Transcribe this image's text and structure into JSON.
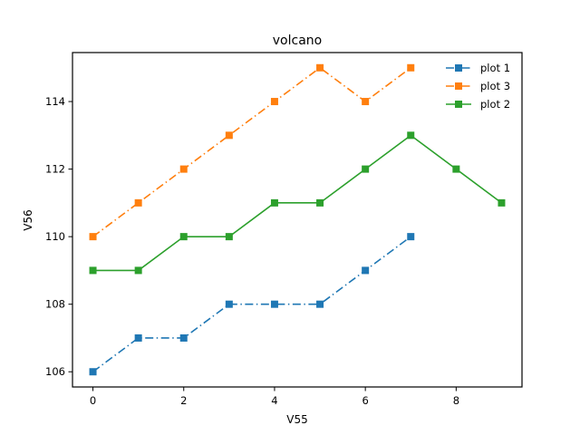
{
  "chart_data": {
    "type": "line",
    "title": "volcano",
    "xlabel": "V55",
    "ylabel": "V56",
    "xlim": [
      -0.45,
      9.45
    ],
    "ylim": [
      105.55,
      115.45
    ],
    "xticks": [
      0,
      2,
      4,
      6,
      8
    ],
    "yticks": [
      106,
      108,
      110,
      112,
      114
    ],
    "grid": false,
    "legend_position": "top-right",
    "series": [
      {
        "name": "plot 1",
        "color": "#1f77b4",
        "linestyle": "dashdot",
        "marker": "square",
        "x": [
          0,
          1,
          2,
          3,
          4,
          5,
          6,
          7
        ],
        "y": [
          106,
          107,
          107,
          108,
          108,
          108,
          109,
          110
        ]
      },
      {
        "name": "plot 3",
        "color": "#ff7f0e",
        "linestyle": "dashdot",
        "marker": "square",
        "x": [
          0,
          1,
          2,
          3,
          4,
          5,
          6,
          7
        ],
        "y": [
          110,
          111,
          112,
          113,
          114,
          115,
          114,
          115
        ]
      },
      {
        "name": "plot 2",
        "color": "#2ca02c",
        "linestyle": "solid",
        "marker": "square",
        "x": [
          0,
          1,
          2,
          3,
          4,
          5,
          6,
          7,
          8,
          9
        ],
        "y": [
          109,
          109,
          110,
          110,
          111,
          111,
          112,
          113,
          112,
          111
        ]
      }
    ]
  }
}
